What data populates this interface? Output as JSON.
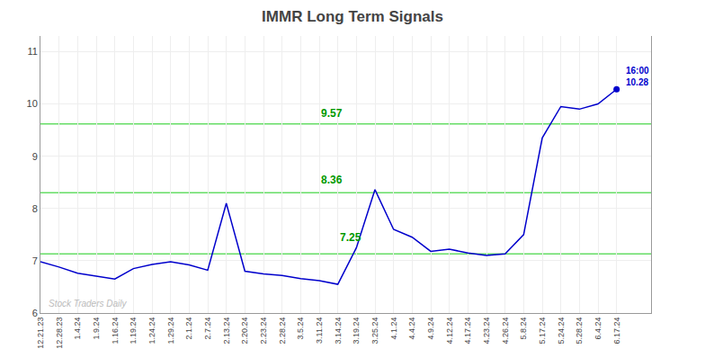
{
  "chart_data": {
    "type": "line",
    "title": "IMMR Long Term Signals",
    "color": "#0000cc",
    "line_style": "solid",
    "categories": [
      "12.21.23",
      "12.28.23",
      "1.4.24",
      "1.9.24",
      "1.16.24",
      "1.19.24",
      "1.24.24",
      "1.29.24",
      "2.1.24",
      "2.7.24",
      "2.13.24",
      "2.20.24",
      "2.23.24",
      "2.28.24",
      "3.5.24",
      "3.11.24",
      "3.14.24",
      "3.19.24",
      "3.25.24",
      "4.1.24",
      "4.4.24",
      "4.9.24",
      "4.12.24",
      "4.17.24",
      "4.23.24",
      "4.26.24",
      "5.8.24",
      "5.17.24",
      "5.24.24",
      "5.28.24",
      "6.4.24",
      "6.17.24"
    ],
    "values": [
      6.98,
      6.88,
      6.76,
      6.7,
      6.65,
      6.85,
      6.93,
      6.98,
      6.92,
      6.82,
      8.1,
      6.8,
      6.75,
      6.72,
      6.66,
      6.62,
      6.55,
      7.25,
      8.36,
      7.6,
      7.45,
      7.18,
      7.22,
      7.15,
      7.1,
      7.13,
      7.5,
      9.35,
      9.95,
      9.9,
      10.0,
      10.28
    ],
    "ylim": [
      6.0,
      11.3
    ],
    "yticks": [
      6,
      7,
      8,
      9,
      10,
      11
    ],
    "grid": true,
    "reference_lines": {
      "values": [
        7.13,
        8.3,
        9.62
      ],
      "color": "#66dd66"
    },
    "endpoint_label": {
      "lines": [
        "16:00",
        "10.28"
      ],
      "color": "#0000cc"
    },
    "annotations": [
      {
        "text": "9.57",
        "x": "3.11.24",
        "y": 9.82,
        "color": "#009900"
      },
      {
        "text": "8.36",
        "x": "3.11.24",
        "y": 8.55,
        "color": "#009900"
      },
      {
        "text": "7.25",
        "x": "3.14.24",
        "y": 7.44,
        "color": "#009900"
      }
    ],
    "watermark": {
      "text": "Stock Traders Daily",
      "color": "#bbbbbb"
    }
  }
}
